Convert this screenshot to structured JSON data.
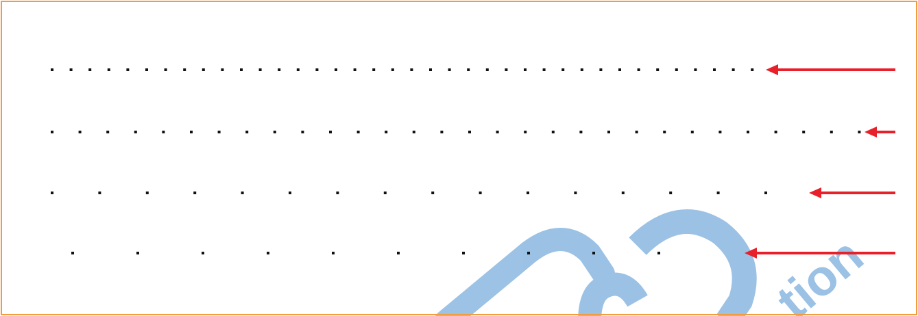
{
  "colors": {
    "frame": "#f39c3c",
    "dots": "#111111",
    "arrow": "#e8202a",
    "watermark": "#4a90d0"
  },
  "rows": [
    {
      "name": "row-1",
      "dot_count": 38
    },
    {
      "name": "row-2",
      "dot_count": 30
    },
    {
      "name": "row-3",
      "dot_count": 17
    },
    {
      "name": "row-4",
      "dot_count": 10
    }
  ],
  "watermark": {
    "text": "tion"
  }
}
